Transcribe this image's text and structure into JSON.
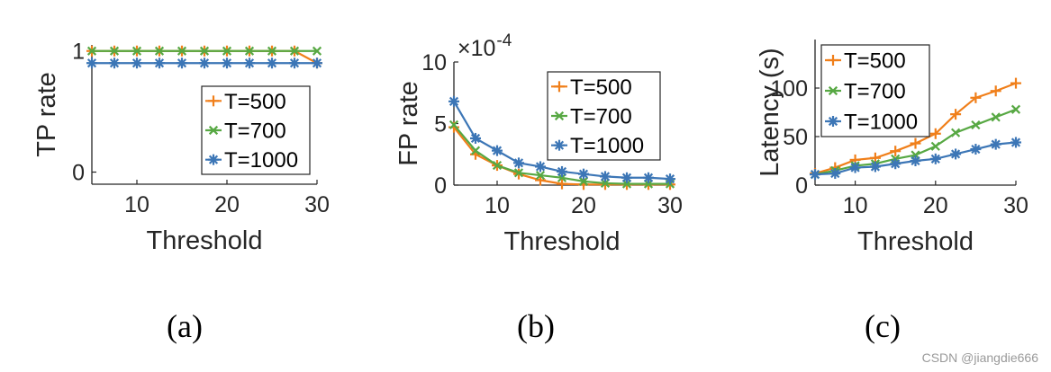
{
  "colors": {
    "T=500": "#F07F1A",
    "T=700": "#57A843",
    "T=1000": "#3C76B6",
    "axis": "#262626",
    "background": "#FFFFFF"
  },
  "watermark": "CSDN @jiangdie666",
  "chart_data": [
    {
      "id": "a",
      "type": "line",
      "caption": "(a)",
      "xlabel": "Threshold",
      "ylabel": "TP rate",
      "xlim": [
        5,
        30
      ],
      "ylim": [
        -0.1,
        1.05
      ],
      "xticks": [
        10,
        20,
        30
      ],
      "yticks": [
        0,
        1
      ],
      "exponent_label": null,
      "legend": {
        "position": "middle-right"
      },
      "x": [
        5,
        7.5,
        10,
        12.5,
        15,
        17.5,
        20,
        22.5,
        25,
        27.5,
        30
      ],
      "series": [
        {
          "name": "T=500",
          "marker": "plus",
          "values": [
            1,
            1,
            1,
            1,
            1,
            1,
            1,
            1,
            1,
            1,
            0.9
          ]
        },
        {
          "name": "T=700",
          "marker": "cross",
          "values": [
            1,
            1,
            1,
            1,
            1,
            1,
            1,
            1,
            1,
            1,
            1
          ]
        },
        {
          "name": "T=1000",
          "marker": "star",
          "values": [
            0.9,
            0.9,
            0.9,
            0.9,
            0.9,
            0.9,
            0.9,
            0.9,
            0.9,
            0.9,
            0.9
          ]
        }
      ]
    },
    {
      "id": "b",
      "type": "line",
      "caption": "(b)",
      "xlabel": "Threshold",
      "ylabel": "FP rate",
      "xlim": [
        5,
        30
      ],
      "ylim": [
        0,
        10
      ],
      "xticks": [
        10,
        20,
        30
      ],
      "yticks": [
        0,
        5,
        10
      ],
      "exponent_label": {
        "base": "×10",
        "power": "-4"
      },
      "legend": {
        "position": "top-right"
      },
      "x": [
        5,
        7.5,
        10,
        12.5,
        15,
        17.5,
        20,
        22.5,
        25,
        27.5,
        30
      ],
      "series": [
        {
          "name": "T=500",
          "marker": "plus",
          "values": [
            4.7,
            2.5,
            1.6,
            0.9,
            0.4,
            0.1,
            0.05,
            0.05,
            0.05,
            0.05,
            0.05
          ]
        },
        {
          "name": "T=700",
          "marker": "cross",
          "values": [
            4.9,
            2.8,
            1.6,
            1.0,
            0.8,
            0.6,
            0.3,
            0.15,
            0.1,
            0.1,
            0.1
          ]
        },
        {
          "name": "T=1000",
          "marker": "star",
          "values": [
            6.8,
            3.8,
            2.8,
            1.8,
            1.5,
            1.1,
            0.9,
            0.7,
            0.6,
            0.6,
            0.5
          ]
        }
      ]
    },
    {
      "id": "c",
      "type": "line",
      "caption": "(c)",
      "xlabel": "Threshold",
      "ylabel": "Latency (s)",
      "xlim": [
        5,
        30
      ],
      "ylim": [
        0,
        150
      ],
      "xticks": [
        10,
        20,
        30
      ],
      "yticks": [
        0,
        50,
        100
      ],
      "exponent_label": null,
      "legend": {
        "position": "top-left"
      },
      "x": [
        5,
        7.5,
        10,
        12.5,
        15,
        17.5,
        20,
        22.5,
        25,
        27.5,
        30
      ],
      "series": [
        {
          "name": "T=500",
          "marker": "plus",
          "values": [
            12,
            18,
            26,
            28,
            35,
            43,
            53,
            73,
            90,
            97,
            105
          ]
        },
        {
          "name": "T=700",
          "marker": "cross",
          "values": [
            11,
            15,
            20,
            22,
            27,
            31,
            40,
            54,
            62,
            70,
            78
          ]
        },
        {
          "name": "T=1000",
          "marker": "star",
          "values": [
            11,
            12,
            18,
            19,
            22,
            25,
            27,
            32,
            37,
            42,
            44
          ]
        }
      ]
    }
  ]
}
